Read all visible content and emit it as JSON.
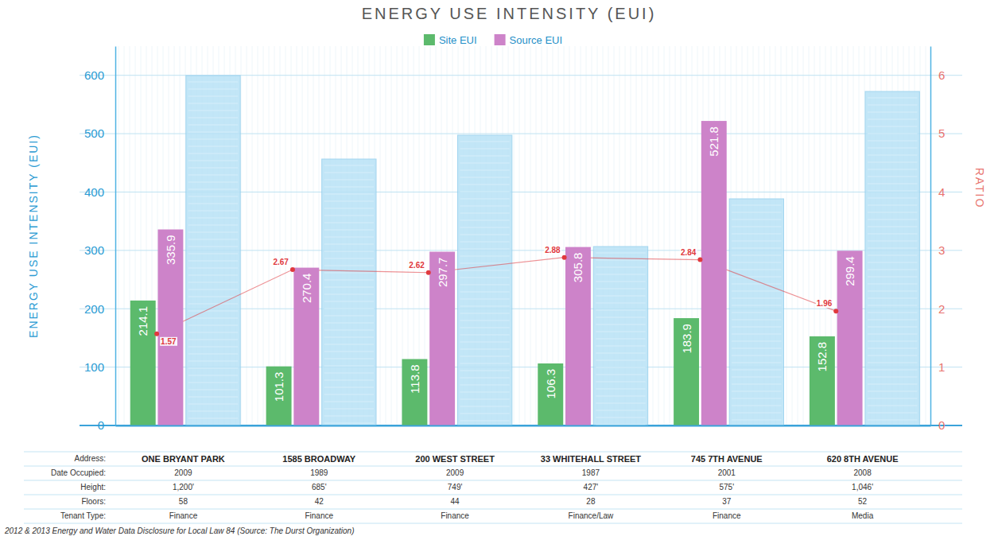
{
  "chart_data": {
    "type": "bar",
    "title": "ENERGY USE INTENSITY (EUI)",
    "y_label": "ENERGY USE INTENSITY (EUI)",
    "y2_label": "RATIO",
    "categories": [
      "ONE BRYANT PARK",
      "1585 BROADWAY",
      "200 WEST STREET",
      "33 WHITEHALL STREET",
      "745 7TH AVENUE",
      "620 8TH AVENUE"
    ],
    "series": [
      {
        "name": "Site EUI",
        "color": "#5cba6c",
        "values": [
          214.1,
          101.3,
          113.8,
          106.3,
          183.9,
          152.8
        ]
      },
      {
        "name": "Source EUI",
        "color": "#cd83c9",
        "values": [
          335.9,
          270.4,
          297.7,
          305.8,
          521.8,
          299.4
        ]
      },
      {
        "type": "line",
        "axis": "y2",
        "color": "#e0393e",
        "marker": "circle",
        "line_style": "solid",
        "values": [
          1.57,
          2.67,
          2.62,
          2.88,
          2.84,
          1.96
        ]
      }
    ],
    "ylim": [
      0,
      650
    ],
    "yticks": [
      0,
      100,
      200,
      300,
      400,
      500,
      600
    ],
    "y2lim": [
      0,
      6.5
    ],
    "y2ticks": [
      0,
      1,
      2,
      3,
      4,
      5,
      6
    ],
    "grid": true,
    "legend": "top",
    "data_labels": true
  },
  "table": {
    "row_labels": [
      "Address:",
      "Date Occupied:",
      "Height:",
      "Floors:",
      "Tenant Type:"
    ],
    "rows": [
      [
        2009,
        1989,
        2009,
        1987,
        2001,
        2008
      ],
      [
        "1,200'",
        "685'",
        "749'",
        "427'",
        "575'",
        "1,046'"
      ],
      [
        58,
        42,
        44,
        28,
        37,
        52
      ],
      [
        "Finance",
        "Finance",
        "Finance",
        "Finance/Law",
        "Finance",
        "Media"
      ]
    ]
  },
  "source": "2012 & 2013 Energy and Water Data Disclosure for Local Law 84 (Source: The Durst Organization)"
}
